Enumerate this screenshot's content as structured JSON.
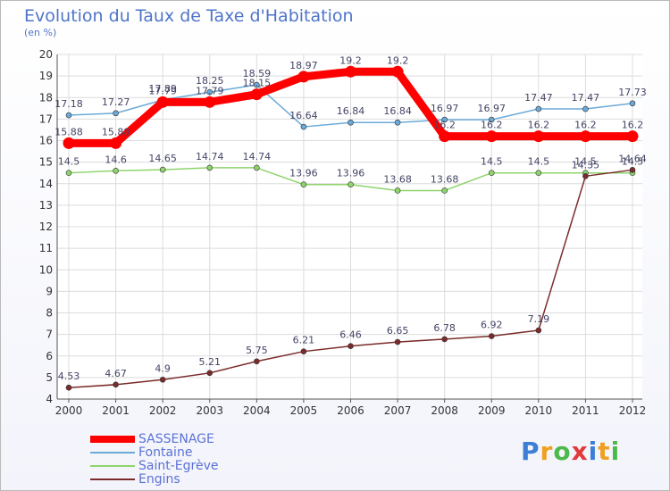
{
  "chart_data": {
    "type": "line",
    "title": "Evolution du Taux de Taxe d'Habitation",
    "subtitle": "(en %)",
    "x": [
      "2000",
      "2001",
      "2002",
      "2003",
      "2004",
      "2005",
      "2006",
      "2007",
      "2008",
      "2009",
      "2010",
      "2011",
      "2012"
    ],
    "ylim": [
      4,
      20
    ],
    "yticks": [
      4,
      5,
      6,
      7,
      8,
      9,
      10,
      11,
      12,
      13,
      14,
      15,
      16,
      17,
      18,
      19,
      20
    ],
    "grid": true,
    "legend_position": "bottom-left",
    "series": [
      {
        "name": "SASSENAGE",
        "color": "#ff0000",
        "emphasis": true,
        "values": [
          15.88,
          15.88,
          17.79,
          17.79,
          18.15,
          18.97,
          19.2,
          19.2,
          16.2,
          16.2,
          16.2,
          16.2,
          16.2
        ],
        "labels": [
          "15.88",
          "15.88",
          "17.79",
          "17.79",
          "18.15",
          "18.97",
          "19.2",
          "19.2",
          "16.2",
          "16.2",
          "16.2",
          "16.2",
          "16.2"
        ]
      },
      {
        "name": "Fontaine",
        "color": "#6baad8",
        "values": [
          17.18,
          17.27,
          17.89,
          18.25,
          18.59,
          16.64,
          16.84,
          16.84,
          16.97,
          16.97,
          17.47,
          17.47,
          17.73
        ],
        "labels": [
          "17.18",
          "17.27",
          "17.89",
          "18.25",
          "18.59",
          "16.64",
          "16.84",
          "16.84",
          "16.97",
          "16.97",
          "17.47",
          "17.47",
          "17.73"
        ]
      },
      {
        "name": "Saint-Egrève",
        "color": "#8ed46b",
        "values": [
          14.5,
          14.6,
          14.65,
          14.74,
          14.74,
          13.96,
          13.96,
          13.68,
          13.68,
          14.5,
          14.5,
          14.5,
          14.5
        ],
        "labels": [
          "14.5",
          "14.6",
          "14.65",
          "14.74",
          "14.74",
          "13.96",
          "13.96",
          "13.68",
          "13.68",
          "14.5",
          "14.5",
          "14.5",
          "14.5"
        ]
      },
      {
        "name": "Engins",
        "color": "#7b2b2b",
        "values": [
          4.53,
          4.67,
          4.9,
          5.21,
          5.75,
          6.21,
          6.46,
          6.65,
          6.78,
          6.92,
          7.19,
          14.35,
          14.64
        ],
        "labels": [
          "4.53",
          "4.67",
          "4.9",
          "5.21",
          "5.75",
          "6.21",
          "6.46",
          "6.65",
          "6.78",
          "6.92",
          "7.19",
          "14.35",
          "14.64"
        ]
      }
    ]
  },
  "brand": {
    "text": "Proxiti",
    "colors": [
      "#3d7fd6",
      "#f0a020",
      "#4bb94b",
      "#e23a3a",
      "#3d7fd6",
      "#f0a020",
      "#4bb94b"
    ]
  }
}
